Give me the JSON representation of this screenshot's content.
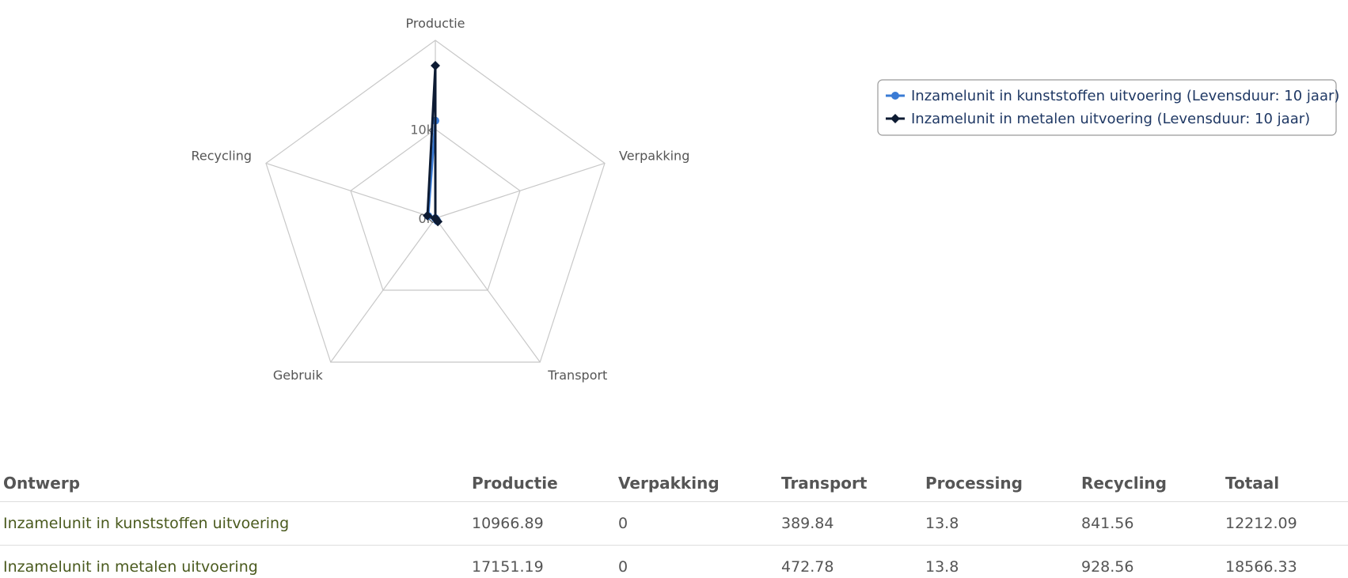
{
  "chart_data": {
    "type": "radar",
    "categories": [
      "Productie",
      "Verpakking",
      "Transport",
      "Gebruik",
      "Recycling"
    ],
    "rlim": [
      0,
      20000
    ],
    "ticks": [
      {
        "value": 0,
        "label": "0k"
      },
      {
        "value": 10000,
        "label": "10k"
      }
    ],
    "grid": true,
    "legend_position": "top-right",
    "series": [
      {
        "name": "Inzamelunit in kunststoffen uitvoering (Levensduur: 10 jaar)",
        "values": [
          10966.89,
          0,
          389.84,
          13.8,
          841.56
        ],
        "color": "#3a7bd5",
        "marker": "circle"
      },
      {
        "name": "Inzamelunit in metalen uitvoering (Levensduur: 10 jaar)",
        "values": [
          17151.19,
          0,
          472.78,
          13.8,
          928.56
        ],
        "color": "#0d1b33",
        "marker": "diamond"
      }
    ]
  },
  "table": {
    "headers": [
      "Ontwerp",
      "Productie",
      "Verpakking",
      "Transport",
      "Processing",
      "Recycling",
      "Totaal"
    ],
    "rows": [
      [
        "Inzamelunit in kunststoffen uitvoering",
        "10966.89",
        "0",
        "389.84",
        "13.8",
        "841.56",
        "12212.09"
      ],
      [
        "Inzamelunit in metalen uitvoering",
        "17151.19",
        "0",
        "472.78",
        "13.8",
        "928.56",
        "18566.33"
      ]
    ]
  }
}
